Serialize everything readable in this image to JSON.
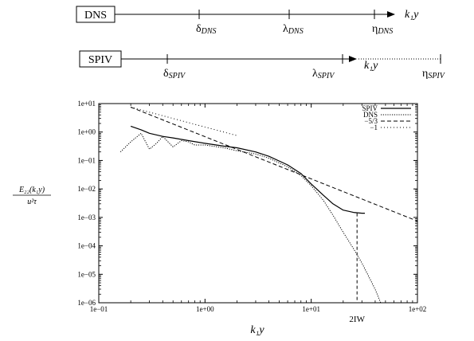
{
  "scales": {
    "dns": {
      "box_label": "DNS",
      "axis_label": "k₁y",
      "markers": [
        {
          "sym": "δ",
          "sub": "DNS"
        },
        {
          "sym": "λ",
          "sub": "DNS"
        },
        {
          "sym": "η",
          "sub": "DNS"
        }
      ]
    },
    "spiv": {
      "box_label": "SPIV",
      "axis_label": "k₁y",
      "markers": [
        {
          "sym": "δ",
          "sub": "SPIV"
        },
        {
          "sym": "λ",
          "sub": "SPIV"
        },
        {
          "sym": "η",
          "sub": "SPIV"
        }
      ]
    }
  },
  "chart_data": {
    "type": "line",
    "title": "",
    "xlabel": "k₁y",
    "ylabel_num": "E₂₂(k₁y)",
    "ylabel_den": "u²τ",
    "x_scale": "log",
    "y_scale": "log",
    "xlim": [
      0.1,
      100
    ],
    "ylim": [
      1e-06,
      10
    ],
    "x_ticks": [
      "1e−01",
      "1e+00",
      "1e+01",
      "1e+02"
    ],
    "y_ticks": [
      "1e−06",
      "1e−05",
      "1e−04",
      "1e−03",
      "1e−02",
      "1e−01",
      "1e+00",
      "1e+01"
    ],
    "grid": false,
    "legend_position": "top-right",
    "annotation": {
      "label": "2IW",
      "x": 27
    },
    "series": [
      {
        "name": "SPIV",
        "style": "solid",
        "x": [
          0.2,
          0.25,
          0.3,
          0.4,
          0.5,
          0.7,
          1.0,
          1.5,
          2.0,
          3.0,
          4.0,
          6.0,
          8.0,
          10.0,
          13.0,
          16.0,
          20.0,
          25.0,
          30.0,
          32.0
        ],
        "y": [
          1.6,
          1.2,
          0.9,
          0.7,
          0.62,
          0.5,
          0.4,
          0.32,
          0.28,
          0.2,
          0.14,
          0.07,
          0.035,
          0.015,
          0.006,
          0.003,
          0.0018,
          0.0015,
          0.0014,
          0.0014
        ]
      },
      {
        "name": "DNS",
        "style": "dotted",
        "x": [
          0.16,
          0.2,
          0.25,
          0.3,
          0.35,
          0.4,
          0.5,
          0.6,
          0.7,
          0.8,
          1.0,
          1.5,
          2.0,
          3.0,
          4.0,
          6.0,
          8.0,
          10.0,
          13.0,
          16.0,
          20.0,
          25.0,
          30.0,
          35.0,
          40.0,
          45.0
        ],
        "y": [
          0.2,
          0.45,
          0.9,
          0.25,
          0.4,
          0.7,
          0.3,
          0.5,
          0.45,
          0.35,
          0.35,
          0.28,
          0.22,
          0.17,
          0.12,
          0.06,
          0.03,
          0.013,
          0.004,
          0.0012,
          0.0003,
          8e-05,
          2.5e-05,
          8e-06,
          3e-06,
          1e-06
        ]
      },
      {
        "name": "−5/3",
        "style": "dashed",
        "x": [
          0.2,
          100
        ],
        "y": [
          7.5,
          0.00074
        ]
      },
      {
        "name": "−1",
        "style": "dense-dotted",
        "x": [
          0.2,
          2.0
        ],
        "y": [
          7.5,
          0.75
        ]
      }
    ]
  }
}
